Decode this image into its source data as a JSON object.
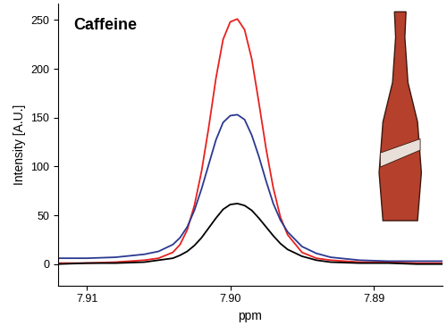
{
  "chart_data": {
    "type": "line",
    "title": "Caffeine",
    "x_label": "ppm",
    "y_label": "Intensity [A.U.]",
    "x": [
      7.912,
      7.91,
      7.908,
      7.906,
      7.905,
      7.904,
      7.9035,
      7.903,
      7.9025,
      7.902,
      7.9015,
      7.901,
      7.9005,
      7.9,
      7.8995,
      7.899,
      7.8985,
      7.898,
      7.8975,
      7.897,
      7.8965,
      7.896,
      7.895,
      7.894,
      7.893,
      7.891,
      7.889,
      7.887,
      7.8852
    ],
    "series": [
      {
        "color": "#e8211f",
        "values": [
          1,
          1,
          2,
          4,
          6,
          12,
          20,
          35,
          60,
          95,
          140,
          190,
          230,
          248,
          251,
          240,
          210,
          165,
          118,
          78,
          48,
          30,
          12,
          6,
          4,
          2,
          2,
          1,
          1
        ]
      },
      {
        "color": "#2b3990",
        "values": [
          6,
          6,
          7,
          10,
          13,
          20,
          27,
          38,
          55,
          77,
          102,
          127,
          145,
          152,
          153,
          148,
          132,
          110,
          85,
          62,
          45,
          33,
          18,
          11,
          7,
          4,
          3,
          3,
          3
        ]
      },
      {
        "color": "#000000",
        "values": [
          0,
          1,
          1,
          2,
          4,
          6,
          9,
          13,
          19,
          27,
          37,
          47,
          56,
          61,
          62,
          60,
          55,
          47,
          38,
          29,
          21,
          15,
          8,
          4,
          2,
          1,
          1,
          0,
          0
        ]
      }
    ],
    "xlim": [
      7.912,
      7.8852
    ],
    "xticks": [
      7.91,
      {
        "value": 7.9,
        "label": "7.90"
      },
      7.89
    ],
    "ylim": [
      -22,
      267
    ],
    "yticks": [
      0,
      50,
      100,
      150,
      200,
      250
    ],
    "grid": false
  }
}
